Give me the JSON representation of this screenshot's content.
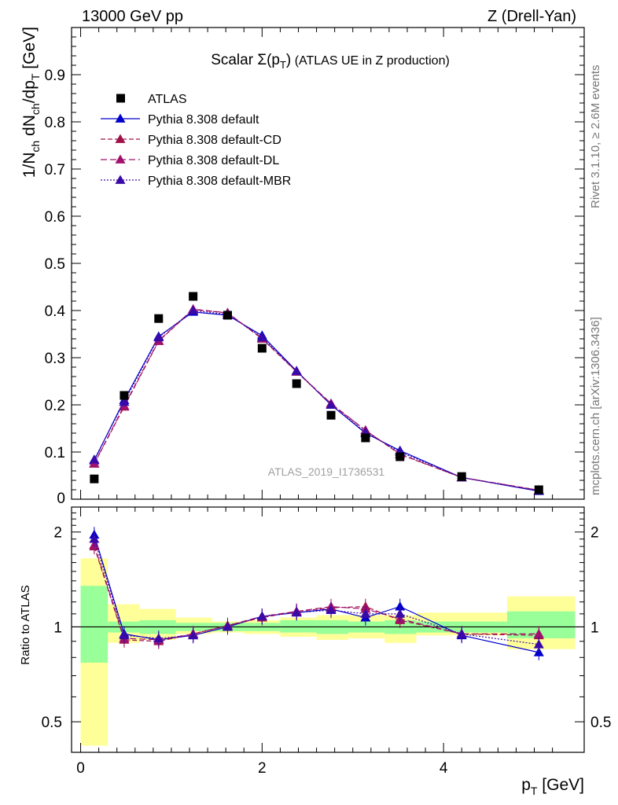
{
  "header": {
    "left": "13000 GeV pp",
    "right": "Z (Drell-Yan)"
  },
  "side": {
    "rivet": "Rivet 3.1.10, ≥ 2.6M events",
    "mcplots": "mcplots.cern.ch [arXiv:1306.3436]"
  },
  "colors": {
    "data": "#000000",
    "default": "#0000cc",
    "cd": "#a0114a",
    "dl": "#a0116e",
    "mbr": "#3a0aa8",
    "band_inner": "#99ff99",
    "band_outer": "#ffff99"
  },
  "chart_data": [
    {
      "type": "scatter",
      "title_prefix": "Scalar ",
      "title_symbol": "Σ(p",
      "title_sub": "T",
      "title_close": ")",
      "title_suffix": " (ATLAS UE in Z production)",
      "ylabel": "1/N_ch dN_ch/dp_T [GeV]",
      "ylabel_main": "1/N",
      "ylabel_sub1": "ch",
      "ylabel_mid": " dN",
      "ylabel_sub2": "ch",
      "ylabel_mid2": "/dp",
      "ylabel_sub3": "T",
      "ylabel_end": " [GeV]",
      "xlim": [
        -0.1,
        5.55
      ],
      "ylim": [
        0,
        1.0
      ],
      "yticks": [
        0.1,
        0.2,
        0.3,
        0.4,
        0.5,
        0.6,
        0.7,
        0.8,
        0.9
      ],
      "ytick_labels": [
        "0.1",
        "0.2",
        "0.3",
        "0.4",
        "0.5",
        "0.6",
        "0.7",
        "0.8",
        "0.9"
      ],
      "ytick_zero": "0",
      "watermark": "ATLAS_2019_I1736531",
      "x": [
        0.15,
        0.48,
        0.86,
        1.24,
        1.62,
        2.0,
        2.38,
        2.76,
        3.14,
        3.52,
        4.2,
        5.05
      ],
      "series": [
        {
          "name": "ATLAS",
          "key": "data",
          "values": [
            0.043,
            0.22,
            0.383,
            0.43,
            0.39,
            0.32,
            0.245,
            0.178,
            0.13,
            0.09,
            0.048,
            0.02
          ]
        },
        {
          "name": "Pythia 8.308 default",
          "key": "default",
          "values": [
            0.082,
            0.21,
            0.345,
            0.397,
            0.39,
            0.347,
            0.272,
            0.2,
            0.14,
            0.103,
            0.046,
            0.017
          ]
        },
        {
          "name": "Pythia 8.308 default-CD",
          "key": "cd",
          "values": [
            0.075,
            0.196,
            0.335,
            0.402,
            0.395,
            0.34,
            0.27,
            0.202,
            0.146,
            0.095,
            0.046,
            0.019
          ]
        },
        {
          "name": "Pythia 8.308 default-DL",
          "key": "dl",
          "values": [
            0.076,
            0.198,
            0.336,
            0.403,
            0.395,
            0.341,
            0.271,
            0.203,
            0.146,
            0.096,
            0.046,
            0.019
          ]
        },
        {
          "name": "Pythia 8.308 default-MBR",
          "key": "mbr",
          "values": [
            0.084,
            0.206,
            0.343,
            0.4,
            0.392,
            0.343,
            0.271,
            0.2,
            0.142,
            0.1,
            0.046,
            0.018
          ]
        }
      ]
    },
    {
      "type": "line",
      "ylabel": "Ratio to ATLAS",
      "xlabel": "p_T [GeV]",
      "xlabel_main": "p",
      "xlabel_sub": "T",
      "xlabel_end": " [GeV]",
      "ylog": true,
      "ylim": [
        0.4,
        2.4
      ],
      "ytick_values": [
        0.5,
        1,
        2
      ],
      "ytick_labels": [
        "0.5",
        "1",
        "2"
      ],
      "xtick_values": [
        0,
        2,
        4
      ],
      "xtick_labels": [
        "0",
        "2",
        "4"
      ],
      "bin_edges": [
        0,
        0.3,
        0.65,
        1.05,
        1.45,
        1.8,
        2.2,
        2.6,
        2.95,
        3.35,
        3.7,
        4.7,
        5.45
      ],
      "band_inner": [
        [
          0.77,
          1.35
        ],
        [
          0.96,
          1.04
        ],
        [
          0.95,
          1.05
        ],
        [
          0.97,
          1.03
        ],
        [
          0.97,
          1.03
        ],
        [
          0.97,
          1.03
        ],
        [
          0.96,
          1.05
        ],
        [
          0.95,
          1.05
        ],
        [
          0.96,
          1.04
        ],
        [
          0.95,
          1.05
        ],
        [
          0.96,
          1.04
        ],
        [
          0.92,
          1.12
        ]
      ],
      "band_outer": [
        [
          0.42,
          1.65
        ],
        [
          0.89,
          1.18
        ],
        [
          0.91,
          1.14
        ],
        [
          0.95,
          1.07
        ],
        [
          0.96,
          1.04
        ],
        [
          0.95,
          1.05
        ],
        [
          0.93,
          1.07
        ],
        [
          0.91,
          1.09
        ],
        [
          0.92,
          1.09
        ],
        [
          0.89,
          1.09
        ],
        [
          0.94,
          1.11
        ],
        [
          0.85,
          1.25
        ]
      ],
      "series": [
        {
          "name": "Pythia 8.308 default",
          "key": "default",
          "values": [
            1.96,
            0.95,
            0.91,
            0.94,
            1.0,
            1.08,
            1.11,
            1.14,
            1.07,
            1.16,
            0.94,
            0.83
          ]
        },
        {
          "name": "Pythia 8.308 default-CD",
          "key": "cd",
          "values": [
            1.8,
            0.91,
            0.9,
            0.95,
            1.01,
            1.07,
            1.12,
            1.15,
            1.16,
            1.05,
            0.95,
            0.94
          ]
        },
        {
          "name": "Pythia 8.308 default-DL",
          "key": "dl",
          "values": [
            1.82,
            0.92,
            0.91,
            0.95,
            1.01,
            1.08,
            1.12,
            1.16,
            1.14,
            1.06,
            0.95,
            0.95
          ]
        },
        {
          "name": "Pythia 8.308 default-MBR",
          "key": "mbr",
          "values": [
            1.9,
            0.94,
            0.92,
            0.94,
            1.0,
            1.08,
            1.11,
            1.13,
            1.1,
            1.1,
            0.95,
            0.88
          ]
        }
      ]
    }
  ]
}
